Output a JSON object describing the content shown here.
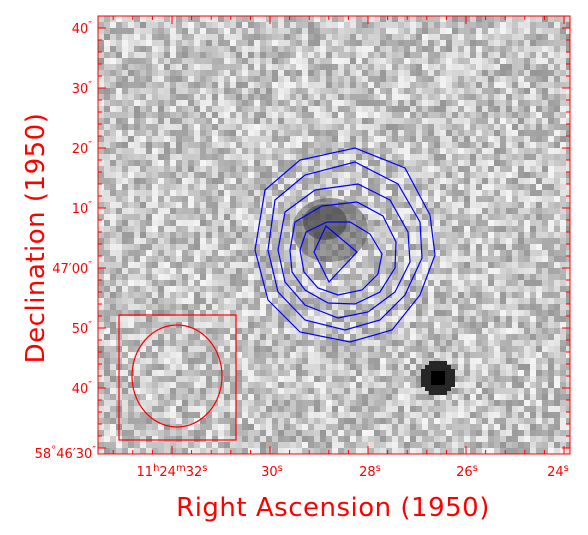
{
  "figure": {
    "x_axis_title": "Right Ascension (1950)",
    "y_axis_title": "Declination (1950)",
    "x_ticks": [
      {
        "h": "11",
        "m": "24",
        "s": "32",
        "label": "32",
        "full": true
      },
      {
        "label": "30",
        "unit": "s"
      },
      {
        "label": "28",
        "unit": "s"
      },
      {
        "label": "26",
        "unit": "s"
      },
      {
        "label": "24",
        "unit": "s"
      }
    ],
    "y_ticks": [
      {
        "label": "40",
        "unit": "″"
      },
      {
        "label": "30",
        "unit": "″"
      },
      {
        "label": "20",
        "unit": "″"
      },
      {
        "label": "10",
        "unit": "″"
      },
      {
        "label": "47′00",
        "unit": "″"
      },
      {
        "label": "50",
        "unit": "″"
      },
      {
        "label": "40",
        "unit": "″"
      },
      {
        "deg": "58",
        "label": "46′30",
        "unit": "″",
        "full": true
      }
    ],
    "colors": {
      "axis": "#ff0000",
      "contours": "#0000ff",
      "beam": "#ff0000"
    }
  }
}
